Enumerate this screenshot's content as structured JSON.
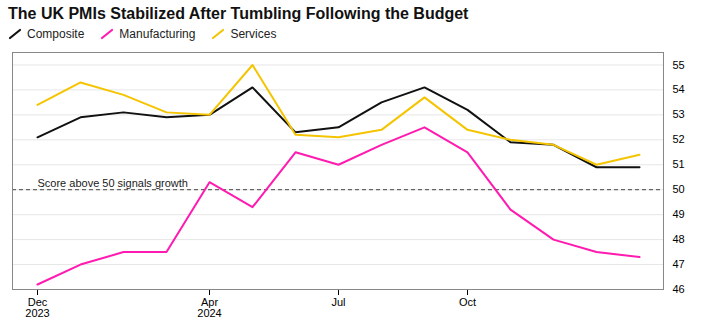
{
  "chart_data": {
    "type": "line",
    "title": "The UK PMIs Stabilized After Tumbling Following the Budget",
    "categories": [
      "Dec\n2023",
      null,
      null,
      null,
      "Apr\n2024",
      null,
      null,
      "Jul",
      null,
      null,
      "Oct",
      null,
      null,
      null,
      null
    ],
    "series": [
      {
        "name": "Composite",
        "color": "#111111",
        "values": [
          52.1,
          52.9,
          53.1,
          52.9,
          53.0,
          54.1,
          52.3,
          52.5,
          53.5,
          54.1,
          53.2,
          51.9,
          51.8,
          50.9,
          50.9
        ]
      },
      {
        "name": "Manufacturing",
        "color": "#ff1ab0",
        "values": [
          46.2,
          47.0,
          47.5,
          47.5,
          50.3,
          49.3,
          51.5,
          51.0,
          51.8,
          52.5,
          51.5,
          49.2,
          48.0,
          47.5,
          47.3
        ]
      },
      {
        "name": "Services",
        "color": "#f5c400",
        "values": [
          53.4,
          54.3,
          53.8,
          53.1,
          53.0,
          55.0,
          52.2,
          52.1,
          52.4,
          53.7,
          52.4,
          52.0,
          51.8,
          51.0,
          51.4
        ]
      }
    ],
    "reference_lines": [
      {
        "y": 50,
        "line_style": "dashed",
        "annotation": "Score above 50 signals growth"
      }
    ],
    "ylim": [
      46,
      55.5
    ],
    "yticks": [
      46,
      47,
      48,
      49,
      50,
      51,
      52,
      53,
      54,
      55
    ],
    "grid": true,
    "legend": "upper left"
  }
}
